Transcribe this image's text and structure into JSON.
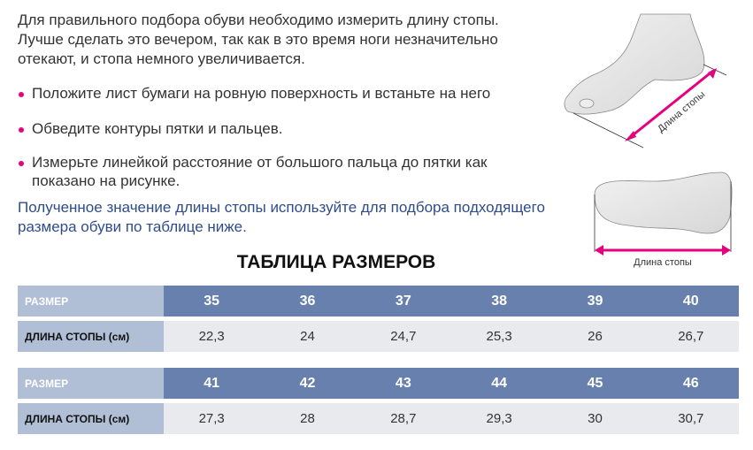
{
  "intro": "Для правильного подбора обуви необходимо измерить длину стопы. Лучше сделать это вечером, так как в это время ноги незначительно отекают, и стопа немного увеличивается.",
  "bullets": [
    "Положите лист бумаги на ровную поверхность и встаньте на него",
    "Обведите контуры пятки и пальцев.",
    "Измерьте линейкой расстояние от большого пальца до пятки как показано на рисунке."
  ],
  "note": "Полученное значение длины стопы используйте для подбора подходящего размера обуви по таблице ниже.",
  "illustrations": {
    "side_label": "Длина стопы",
    "sole_label": "Длина стопы",
    "accent_color": "#e5007d"
  },
  "table_title": "ТАБЛИЦА РАЗМЕРОВ",
  "tables": [
    {
      "size_label": "РАЗМЕР",
      "length_label": "ДЛИНА СТОПЫ (см)",
      "sizes": [
        "35",
        "36",
        "37",
        "38",
        "39",
        "40"
      ],
      "lengths": [
        "22,3",
        "24",
        "24,7",
        "25,3",
        "26",
        "26,7"
      ]
    },
    {
      "size_label": "РАЗМЕР",
      "length_label": "ДЛИНА СТОПЫ (см)",
      "sizes": [
        "41",
        "42",
        "43",
        "44",
        "45",
        "46"
      ],
      "lengths": [
        "27,3",
        "28",
        "28,7",
        "29,3",
        "30",
        "30,7"
      ]
    }
  ],
  "colors": {
    "header": "#6880ad",
    "label": "#b0bfd6",
    "row": "#e8eaee",
    "note": "#2e4c8c"
  }
}
